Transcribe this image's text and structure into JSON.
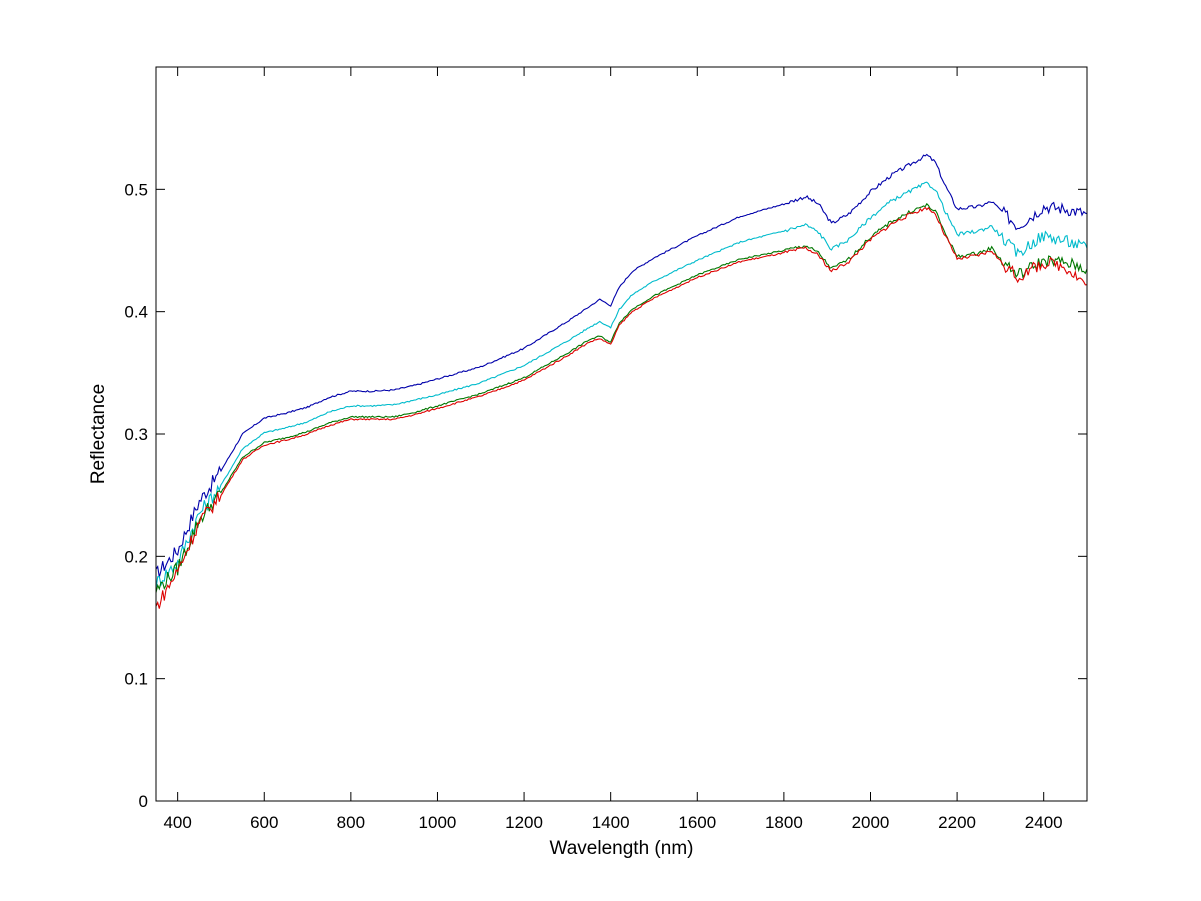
{
  "chart_data": {
    "type": "line",
    "title": "",
    "xlabel": "Wavelength (nm)",
    "ylabel": "Reflectance",
    "xlim": [
      350,
      2500
    ],
    "ylim": [
      0,
      0.6
    ],
    "grid": false,
    "legend": "none",
    "x_ticks": [
      400,
      600,
      800,
      1000,
      1200,
      1400,
      1600,
      1800,
      2000,
      2200,
      2400
    ],
    "x_tick_labels": [
      "400",
      "600",
      "800",
      "1000",
      "1200",
      "1400",
      "1600",
      "1800",
      "2000",
      "2200",
      "2400"
    ],
    "y_ticks": [
      0,
      0.1,
      0.2,
      0.3,
      0.4,
      0.5
    ],
    "y_tick_labels": [
      "0",
      "0.1",
      "0.2",
      "0.3",
      "0.4",
      "0.5"
    ],
    "x": [
      350,
      400,
      450,
      500,
      550,
      600,
      650,
      700,
      750,
      800,
      850,
      900,
      950,
      1000,
      1100,
      1200,
      1300,
      1350,
      1375,
      1400,
      1420,
      1450,
      1500,
      1600,
      1700,
      1800,
      1850,
      1880,
      1910,
      1950,
      2000,
      2050,
      2100,
      2130,
      2150,
      2170,
      2200,
      2250,
      2280,
      2300,
      2340,
      2380,
      2400,
      2450,
      2500
    ],
    "series": [
      {
        "color": "#0000aa",
        "values": [
          0.185,
          0.205,
          0.245,
          0.27,
          0.3,
          0.313,
          0.317,
          0.322,
          0.33,
          0.335,
          0.335,
          0.336,
          0.34,
          0.345,
          0.355,
          0.37,
          0.392,
          0.404,
          0.41,
          0.405,
          0.42,
          0.433,
          0.444,
          0.462,
          0.478,
          0.488,
          0.494,
          0.488,
          0.472,
          0.48,
          0.498,
          0.512,
          0.522,
          0.528,
          0.522,
          0.505,
          0.484,
          0.486,
          0.49,
          0.483,
          0.47,
          0.48,
          0.486,
          0.484,
          0.48
        ]
      },
      {
        "color": "#00bbcc",
        "values": [
          0.178,
          0.195,
          0.235,
          0.258,
          0.288,
          0.301,
          0.305,
          0.31,
          0.318,
          0.323,
          0.323,
          0.324,
          0.328,
          0.332,
          0.342,
          0.356,
          0.376,
          0.387,
          0.392,
          0.387,
          0.402,
          0.414,
          0.425,
          0.442,
          0.457,
          0.466,
          0.471,
          0.465,
          0.451,
          0.459,
          0.477,
          0.491,
          0.5,
          0.505,
          0.5,
          0.484,
          0.463,
          0.466,
          0.47,
          0.462,
          0.447,
          0.458,
          0.462,
          0.458,
          0.452
        ]
      },
      {
        "color": "#007700",
        "values": [
          0.172,
          0.19,
          0.23,
          0.252,
          0.281,
          0.293,
          0.297,
          0.302,
          0.309,
          0.314,
          0.314,
          0.314,
          0.318,
          0.323,
          0.333,
          0.346,
          0.366,
          0.377,
          0.38,
          0.375,
          0.391,
          0.402,
          0.413,
          0.43,
          0.443,
          0.45,
          0.454,
          0.448,
          0.435,
          0.443,
          0.461,
          0.474,
          0.483,
          0.487,
          0.482,
          0.466,
          0.445,
          0.448,
          0.452,
          0.443,
          0.43,
          0.438,
          0.442,
          0.44,
          0.435
        ]
      },
      {
        "color": "#dd0000",
        "values": [
          0.158,
          0.188,
          0.228,
          0.25,
          0.279,
          0.291,
          0.295,
          0.3,
          0.307,
          0.312,
          0.312,
          0.312,
          0.316,
          0.321,
          0.331,
          0.344,
          0.364,
          0.375,
          0.378,
          0.373,
          0.389,
          0.4,
          0.411,
          0.428,
          0.441,
          0.448,
          0.452,
          0.446,
          0.433,
          0.441,
          0.459,
          0.472,
          0.481,
          0.485,
          0.48,
          0.464,
          0.443,
          0.446,
          0.45,
          0.441,
          0.428,
          0.436,
          0.44,
          0.437,
          0.422
        ]
      }
    ]
  }
}
